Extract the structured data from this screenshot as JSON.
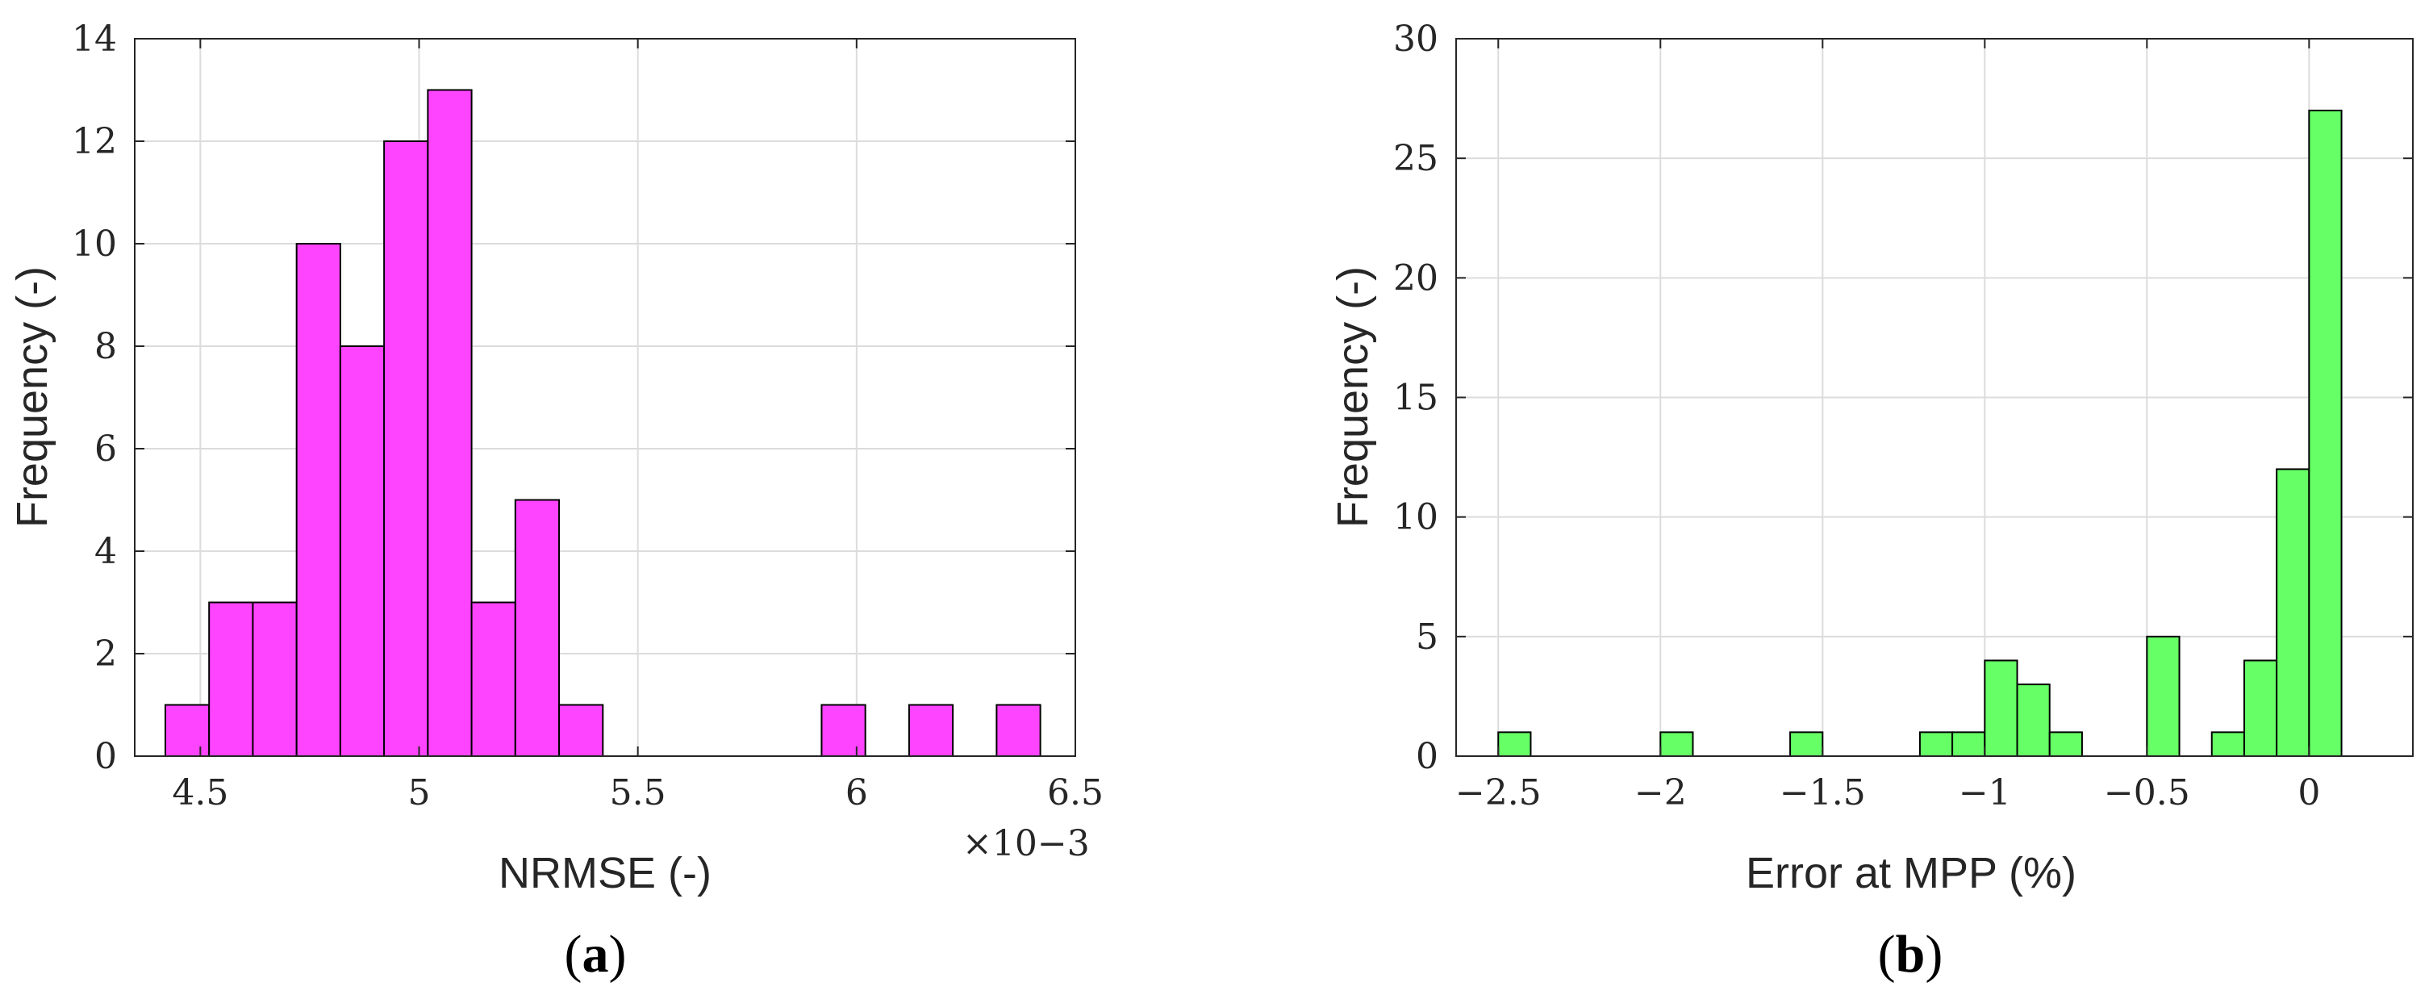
{
  "chart_data": [
    {
      "type": "bar",
      "panel_label": {
        "open": "(",
        "letter": "a",
        "close": ")"
      },
      "xlabel": "NRMSE (-)",
      "ylabel": "Frequency (-)",
      "x_multiplier": "×10−3",
      "xlim": [
        4.35,
        6.5
      ],
      "ylim": [
        0,
        14
      ],
      "xticks": [
        4.5,
        5,
        5.5,
        6,
        6.5
      ],
      "xtick_labels": [
        "4.5",
        "5",
        "5.5",
        "6",
        "6.5"
      ],
      "yticks": [
        0,
        2,
        4,
        6,
        8,
        10,
        12,
        14
      ],
      "ytick_labels": [
        "0",
        "2",
        "4",
        "6",
        "8",
        "10",
        "12",
        "14"
      ],
      "grid": true,
      "bin_edges": [
        4.42,
        4.52,
        4.62,
        4.72,
        4.82,
        4.92,
        5.02,
        5.12,
        5.22,
        5.32,
        5.42,
        5.52,
        5.62,
        5.72,
        5.82,
        5.92,
        6.02,
        6.12,
        6.22,
        6.32,
        6.42
      ],
      "values": [
        1,
        3,
        3,
        10,
        8,
        12,
        13,
        3,
        5,
        1,
        0,
        0,
        0,
        0,
        0,
        1,
        0,
        1,
        0,
        1
      ],
      "color": "#ff44ff"
    },
    {
      "type": "bar",
      "panel_label": {
        "open": "(",
        "letter": "b",
        "close": ")"
      },
      "xlabel": "Error at MPP (%)",
      "ylabel": "Frequency (-)",
      "xlim": [
        -2.63,
        0.32
      ],
      "ylim": [
        0,
        30
      ],
      "xticks": [
        -2.5,
        -2,
        -1.5,
        -1,
        -0.5,
        0
      ],
      "xtick_labels": [
        "−2.5",
        "−2",
        "−1.5",
        "−1",
        "−0.5",
        "0"
      ],
      "yticks": [
        0,
        5,
        10,
        15,
        20,
        25,
        30
      ],
      "ytick_labels": [
        "0",
        "5",
        "10",
        "15",
        "20",
        "25",
        "30"
      ],
      "grid": true,
      "bin_edges": [
        -2.5,
        -2.4,
        -2.3,
        -2.2,
        -2.1,
        -2.0,
        -1.9,
        -1.8,
        -1.7,
        -1.6,
        -1.5,
        -1.4,
        -1.3,
        -1.2,
        -1.1,
        -1.0,
        -0.9,
        -0.8,
        -0.7,
        -0.6,
        -0.5,
        -0.4,
        -0.3,
        -0.2,
        -0.1,
        0.0,
        0.1,
        0.2,
        0.3
      ],
      "values": [
        1,
        0,
        0,
        0,
        0,
        1,
        0,
        0,
        0,
        1,
        0,
        0,
        0,
        1,
        1,
        4,
        3,
        1,
        0,
        0,
        5,
        0,
        1,
        4,
        12,
        27,
        0,
        0
      ],
      "color": "#66ff66"
    }
  ]
}
